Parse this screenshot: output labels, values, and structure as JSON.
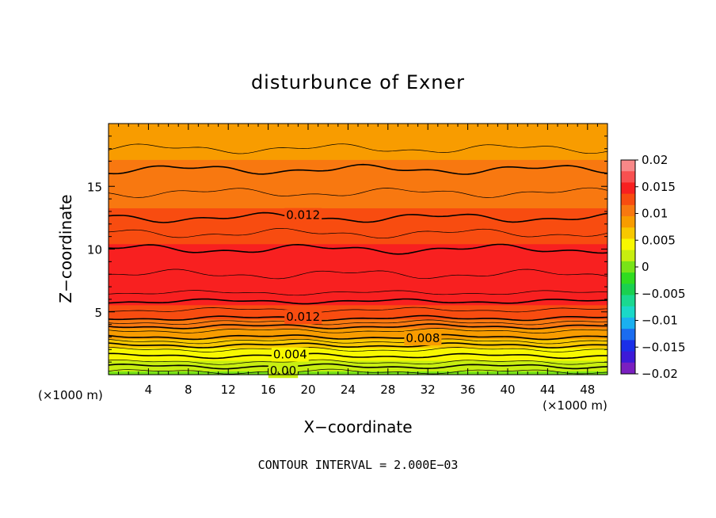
{
  "chart_data": {
    "type": "contour",
    "title": "disturbunce of Exner",
    "xlabel": "X−coordinate",
    "ylabel": "Z−coordinate",
    "x_unit_left": "(×1000 m)",
    "x_unit_right": "(×1000 m)",
    "xlim": [
      0,
      50
    ],
    "ylim": [
      0,
      20
    ],
    "x_ticks": [
      4,
      8,
      12,
      16,
      20,
      24,
      28,
      32,
      36,
      40,
      44,
      48
    ],
    "y_ticks": [
      5,
      10,
      15
    ],
    "footer": "CONTOUR INTERVAL = 2.000E−03",
    "colorbar": {
      "range": [
        -0.02,
        0.02
      ],
      "tick_labels": [
        "0.02",
        "0.015",
        "0.01",
        "0.005",
        "0",
        "−0.005",
        "−0.01",
        "−0.015",
        "−0.02"
      ],
      "colors": [
        "#7a1fc0",
        "#3d1ad8",
        "#1a2fe8",
        "#1a6cf0",
        "#1ab0f0",
        "#1ad8c8",
        "#1ad890",
        "#1ad050",
        "#30dc20",
        "#78e418",
        "#c8ee10",
        "#f8f800",
        "#f8c800",
        "#f89c00",
        "#f87810",
        "#f84c10",
        "#f82020",
        "#f85050",
        "#f88888"
      ]
    },
    "contour_labels": [
      {
        "text": "0.012",
        "x": 19.5,
        "z": 12.7
      },
      {
        "text": "0.012",
        "x": 19.5,
        "z": 4.6
      },
      {
        "text": "0.008",
        "x": 31.5,
        "z": 2.9
      },
      {
        "text": "0.004",
        "x": 18.2,
        "z": 1.6
      },
      {
        "text": "0.00",
        "x": 17.5,
        "z": 0.3
      }
    ],
    "field_profile": [
      {
        "z": 0.0,
        "value": 0.0005
      },
      {
        "z": 0.5,
        "value": 0.0015
      },
      {
        "z": 1.0,
        "value": 0.003
      },
      {
        "z": 1.5,
        "value": 0.004
      },
      {
        "z": 2.0,
        "value": 0.005
      },
      {
        "z": 2.5,
        "value": 0.0065
      },
      {
        "z": 3.0,
        "value": 0.008
      },
      {
        "z": 3.5,
        "value": 0.009
      },
      {
        "z": 4.0,
        "value": 0.0105
      },
      {
        "z": 4.5,
        "value": 0.012
      },
      {
        "z": 5.5,
        "value": 0.0135
      },
      {
        "z": 6.5,
        "value": 0.015
      },
      {
        "z": 8.0,
        "value": 0.015
      },
      {
        "z": 10.0,
        "value": 0.014
      },
      {
        "z": 12.5,
        "value": 0.012
      },
      {
        "z": 15.5,
        "value": 0.0105
      },
      {
        "z": 18.0,
        "value": 0.009
      },
      {
        "z": 20.0,
        "value": 0.0085
      }
    ]
  }
}
